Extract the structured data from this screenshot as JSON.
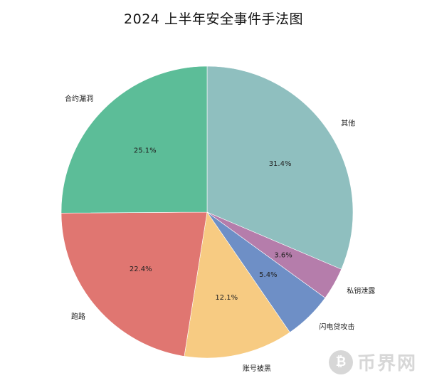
{
  "chart_data": {
    "type": "pie",
    "title": "2024 上半年安全事件手法图",
    "slices": [
      {
        "label": "其他",
        "value": 31.4,
        "pct_label": "31.4%",
        "color": "#8fbfbf"
      },
      {
        "label": "私钥泄露",
        "value": 3.6,
        "pct_label": "3.6%",
        "color": "#b57dab"
      },
      {
        "label": "闪电贷攻击",
        "value": 5.4,
        "pct_label": "5.4%",
        "color": "#6e8fc6"
      },
      {
        "label": "账号被黑",
        "value": 12.1,
        "pct_label": "12.1%",
        "color": "#f7cb82"
      },
      {
        "label": "跑路",
        "value": 22.4,
        "pct_label": "22.4%",
        "color": "#e07671"
      },
      {
        "label": "合约漏洞",
        "value": 25.1,
        "pct_label": "25.1%",
        "color": "#5cbd98"
      }
    ],
    "start_angle_deg": 90,
    "direction": "clockwise"
  },
  "watermark": {
    "logo_glyph": "₿",
    "text": "币界网"
  }
}
